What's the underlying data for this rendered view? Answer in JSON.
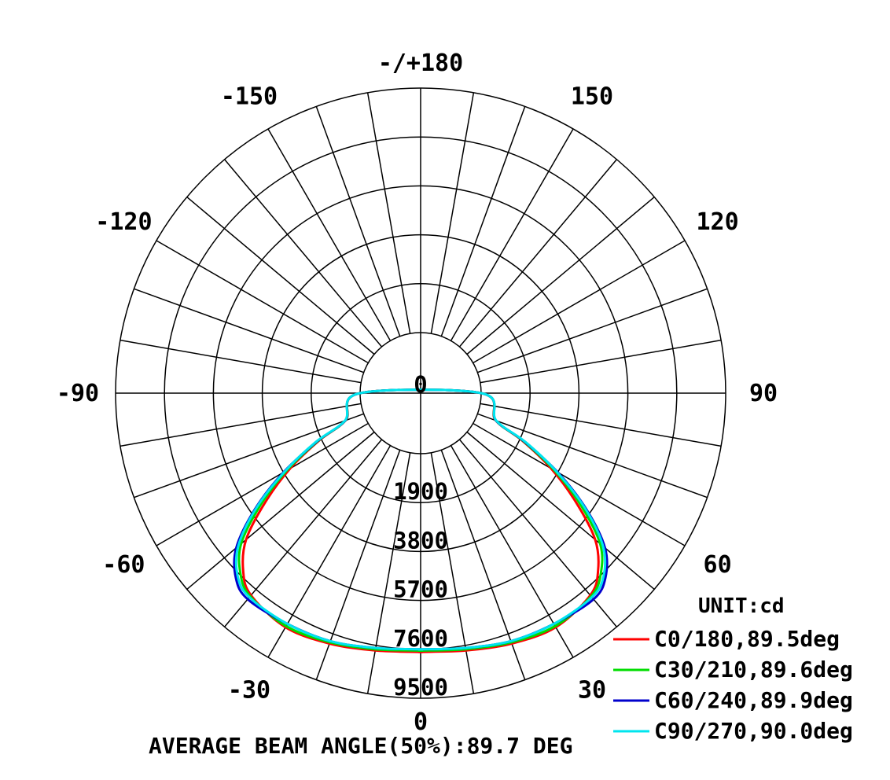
{
  "chart_data": {
    "type": "polar",
    "unit_label": "UNIT:cd",
    "footer": "AVERAGE BEAM ANGLE(50%):89.7 DEG",
    "rlim": [
      0,
      9500
    ],
    "radial_ticks": [
      0,
      1900,
      3800,
      5700,
      7600,
      9500
    ],
    "radial_tick_labels": [
      "0",
      "1900",
      "3800",
      "5700",
      "7600",
      "9500"
    ],
    "angle_labels": [
      {
        "angle": 180,
        "text": "-/+180"
      },
      {
        "angle": -150,
        "text": "-150"
      },
      {
        "angle": 150,
        "text": "150"
      },
      {
        "angle": -120,
        "text": "-120"
      },
      {
        "angle": 120,
        "text": "120"
      },
      {
        "angle": -90,
        "text": "-90"
      },
      {
        "angle": 90,
        "text": "90"
      },
      {
        "angle": -60,
        "text": "-60"
      },
      {
        "angle": 60,
        "text": "60"
      },
      {
        "angle": -30,
        "text": "-30"
      },
      {
        "angle": 30,
        "text": "30"
      },
      {
        "angle": 0,
        "text": "0"
      }
    ],
    "spoke_step_deg": 10,
    "gamma": [
      0,
      10,
      20,
      30,
      40,
      45,
      50,
      55,
      60,
      65,
      70,
      90
    ],
    "series": [
      {
        "name": "C0/180,89.5deg",
        "color": "#ff0000",
        "right": [
          7700,
          7800,
          8000,
          8150,
          7900,
          7400,
          6500,
          5000,
          3500,
          2000,
          750,
          0
        ],
        "left": [
          7700,
          7800,
          8000,
          8150,
          7900,
          7400,
          6500,
          5000,
          3500,
          2000,
          750,
          0
        ]
      },
      {
        "name": "C30/210,89.6deg",
        "color": "#00dd00",
        "right": [
          7650,
          7750,
          7950,
          8100,
          7950,
          7550,
          6750,
          5250,
          3650,
          2050,
          760,
          0
        ],
        "left": [
          7650,
          7750,
          7950,
          8100,
          7950,
          7550,
          6750,
          5250,
          3650,
          2050,
          760,
          0
        ]
      },
      {
        "name": "C60/240,89.9deg",
        "color": "#0000cc",
        "right": [
          7600,
          7700,
          7900,
          8000,
          8100,
          7800,
          7000,
          5500,
          3800,
          2100,
          770,
          0
        ],
        "left": [
          7600,
          7700,
          7900,
          8000,
          8100,
          7800,
          7000,
          5500,
          3800,
          2100,
          770,
          0
        ]
      },
      {
        "name": "C90/270,90.0deg",
        "color": "#00e5ee",
        "right": [
          7600,
          7700,
          7900,
          8000,
          8000,
          7700,
          6900,
          5450,
          3750,
          2150,
          780,
          0
        ],
        "left": [
          7600,
          7700,
          7900,
          8000,
          8000,
          7700,
          6900,
          5450,
          3750,
          2150,
          780,
          0
        ]
      }
    ]
  }
}
